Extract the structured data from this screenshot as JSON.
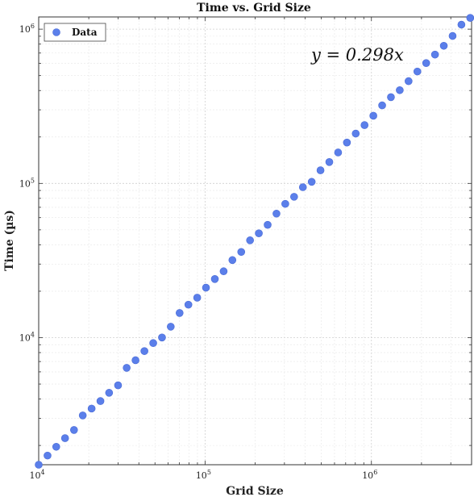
{
  "chart_data": {
    "type": "scatter",
    "title": "Time vs. Grid Size",
    "xlabel": "Grid Size",
    "ylabel": "Time (µs)",
    "xscale": "log",
    "yscale": "log",
    "xlim": [
      10000,
      4000000
    ],
    "ylim": [
      1500,
      1200000
    ],
    "x_ticks": [
      {
        "value": 10000,
        "base": "10",
        "exp": "4"
      },
      {
        "value": 100000,
        "base": "10",
        "exp": "5"
      },
      {
        "value": 1000000,
        "base": "10",
        "exp": "6"
      }
    ],
    "y_ticks": [
      {
        "value": 10000,
        "base": "10",
        "exp": "4"
      },
      {
        "value": 100000,
        "base": "10",
        "exp": "5"
      },
      {
        "value": 1000000,
        "base": "10",
        "exp": "6"
      }
    ],
    "grid": true,
    "legend": {
      "position": "top-left",
      "entries": [
        "Data"
      ]
    },
    "annotation": "y = 0.298x",
    "marker_color": "#5b7fea",
    "series": [
      {
        "name": "Data",
        "points": [
          [
            10000,
            1500
          ],
          [
            11300,
            1720
          ],
          [
            12750,
            1960
          ],
          [
            14400,
            2230
          ],
          [
            16300,
            2520
          ],
          [
            18400,
            3130
          ],
          [
            20800,
            3470
          ],
          [
            23500,
            3880
          ],
          [
            26500,
            4390
          ],
          [
            30000,
            4910
          ],
          [
            33800,
            6370
          ],
          [
            38200,
            7140
          ],
          [
            43200,
            8180
          ],
          [
            48800,
            9220
          ],
          [
            55100,
            10020
          ],
          [
            62200,
            11780
          ],
          [
            70300,
            14450
          ],
          [
            79400,
            16360
          ],
          [
            89700,
            18160
          ],
          [
            101300,
            21090
          ],
          [
            114500,
            24000
          ],
          [
            129300,
            26940
          ],
          [
            146000,
            31840
          ],
          [
            165000,
            35940
          ],
          [
            186400,
            42760
          ],
          [
            210500,
            47460
          ],
          [
            237800,
            53870
          ],
          [
            268700,
            63690
          ],
          [
            303500,
            73710
          ],
          [
            342900,
            81910
          ],
          [
            387300,
            94520
          ],
          [
            437500,
            102400
          ],
          [
            494200,
            121600
          ],
          [
            558300,
            137600
          ],
          [
            630700,
            158700
          ],
          [
            712500,
            184000
          ],
          [
            804900,
            210500
          ],
          [
            909200,
            238700
          ],
          [
            1027000,
            274600
          ],
          [
            1160000,
            320500
          ],
          [
            1310000,
            362300
          ],
          [
            1480000,
            402100
          ],
          [
            1672000,
            460100
          ],
          [
            1889000,
            531400
          ],
          [
            2134000,
            602700
          ],
          [
            2411000,
            684200
          ],
          [
            2723000,
            779800
          ],
          [
            3076000,
            903900
          ],
          [
            3475000,
            1070000
          ],
          [
            3926000,
            1183000
          ]
        ]
      }
    ]
  }
}
